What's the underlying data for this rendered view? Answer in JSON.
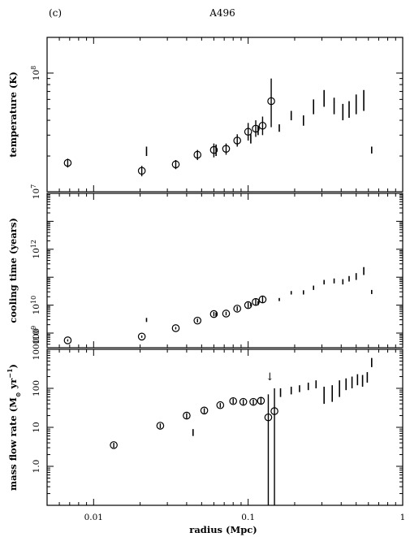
{
  "figure": {
    "panel_label": "(c)",
    "title": "A496",
    "xlabel": "radius (Mpc)",
    "x_scale": "log",
    "xlim": [
      0.005,
      1
    ],
    "x_ticks": [
      {
        "v": 0.01,
        "t": "0.01"
      },
      {
        "v": 0.1,
        "t": "0.1"
      },
      {
        "v": 1,
        "t": "1"
      }
    ]
  },
  "chart_data": [
    {
      "type": "scatter",
      "panel": "top",
      "ylabel": "temperature (K)",
      "y_scale": "log",
      "ylim": [
        10000000,
        200000000
      ],
      "y_ticks": [
        {
          "v": 10000000,
          "t": "10",
          "sup": "7"
        },
        {
          "v": 100000000,
          "t": "10",
          "sup": "8"
        }
      ],
      "circles": [
        {
          "x": 0.0068,
          "y": 17500000,
          "lo": 16000000,
          "hi": 19000000
        },
        {
          "x": 0.0205,
          "y": 15000000,
          "lo": 13500000,
          "hi": 16500000
        },
        {
          "x": 0.034,
          "y": 17000000,
          "lo": 15500000,
          "hi": 18500000
        },
        {
          "x": 0.047,
          "y": 20500000,
          "lo": 18500000,
          "hi": 22500000
        },
        {
          "x": 0.06,
          "y": 22500000,
          "lo": 19500000,
          "hi": 25500000
        },
        {
          "x": 0.072,
          "y": 23000000,
          "lo": 20500000,
          "hi": 25500000
        },
        {
          "x": 0.085,
          "y": 27000000,
          "lo": 24000000,
          "hi": 30500000
        },
        {
          "x": 0.1,
          "y": 32000000,
          "lo": 27000000,
          "hi": 38000000
        },
        {
          "x": 0.112,
          "y": 34000000,
          "lo": 29000000,
          "hi": 40000000
        },
        {
          "x": 0.124,
          "y": 36000000,
          "lo": 30000000,
          "hi": 43000000
        },
        {
          "x": 0.141,
          "y": 58000000,
          "lo": 35000000,
          "hi": 90000000
        }
      ],
      "bars": [
        {
          "x": 0.022,
          "lo": 20000000,
          "hi": 24000000
        },
        {
          "x": 0.062,
          "lo": 20000000,
          "hi": 25000000
        },
        {
          "x": 0.104,
          "lo": 25500000,
          "hi": 30500000
        },
        {
          "x": 0.116,
          "lo": 30000000,
          "hi": 36000000
        },
        {
          "x": 0.159,
          "lo": 32000000,
          "hi": 37000000
        },
        {
          "x": 0.19,
          "lo": 40000000,
          "hi": 48000000
        },
        {
          "x": 0.228,
          "lo": 36000000,
          "hi": 44000000
        },
        {
          "x": 0.265,
          "lo": 45000000,
          "hi": 60000000
        },
        {
          "x": 0.31,
          "lo": 52000000,
          "hi": 72000000
        },
        {
          "x": 0.36,
          "lo": 45000000,
          "hi": 62000000
        },
        {
          "x": 0.41,
          "lo": 40000000,
          "hi": 55000000
        },
        {
          "x": 0.45,
          "lo": 42000000,
          "hi": 58000000
        },
        {
          "x": 0.5,
          "lo": 45000000,
          "hi": 66000000
        },
        {
          "x": 0.56,
          "lo": 48000000,
          "hi": 72000000
        },
        {
          "x": 0.63,
          "lo": 21000000,
          "hi": 24000000
        }
      ]
    },
    {
      "type": "scatter",
      "panel": "middle",
      "ylabel": "cooling time (years)",
      "y_scale": "log",
      "ylim": [
        300000000,
        100000000000000
      ],
      "y_ticks": [
        {
          "v": 1000000000,
          "t": "10",
          "sup": "9"
        },
        {
          "v": 10000000000,
          "t": "10",
          "sup": "10"
        },
        {
          "v": 1000000000000,
          "t": "10",
          "sup": "12"
        }
      ],
      "y_extra_label": "100",
      "circles": [
        {
          "x": 0.0068,
          "y": 550000000,
          "lo": 500000000,
          "hi": 600000000
        },
        {
          "x": 0.0205,
          "y": 750000000,
          "lo": 680000000,
          "hi": 820000000
        },
        {
          "x": 0.034,
          "y": 1500000000,
          "lo": 1350000000,
          "hi": 1650000000
        },
        {
          "x": 0.047,
          "y": 2800000000,
          "lo": 2400000000,
          "hi": 3300000000
        },
        {
          "x": 0.06,
          "y": 4800000000,
          "lo": 4000000000,
          "hi": 5700000000
        },
        {
          "x": 0.072,
          "y": 5000000000,
          "lo": 4300000000,
          "hi": 5800000000
        },
        {
          "x": 0.085,
          "y": 7500000000,
          "lo": 6200000000,
          "hi": 9000000000
        },
        {
          "x": 0.1,
          "y": 10000000000,
          "lo": 8000000000,
          "hi": 12500000000
        },
        {
          "x": 0.112,
          "y": 13000000000,
          "lo": 10000000000,
          "hi": 17000000000
        },
        {
          "x": 0.124,
          "y": 16000000000,
          "lo": 12000000000,
          "hi": 21000000000
        }
      ],
      "bars": [
        {
          "x": 0.022,
          "lo": 2500000000,
          "hi": 3500000000
        },
        {
          "x": 0.062,
          "lo": 4000000000,
          "hi": 5500000000
        },
        {
          "x": 0.104,
          "lo": 9000000000,
          "hi": 12000000000
        },
        {
          "x": 0.116,
          "lo": 10000000000,
          "hi": 14000000000
        },
        {
          "x": 0.159,
          "lo": 14000000000,
          "hi": 18000000000
        },
        {
          "x": 0.19,
          "lo": 24000000000,
          "hi": 32000000000
        },
        {
          "x": 0.228,
          "lo": 24000000000,
          "hi": 34000000000
        },
        {
          "x": 0.265,
          "lo": 35000000000,
          "hi": 50000000000
        },
        {
          "x": 0.31,
          "lo": 55000000000,
          "hi": 80000000000
        },
        {
          "x": 0.36,
          "lo": 60000000000,
          "hi": 90000000000
        },
        {
          "x": 0.41,
          "lo": 55000000000,
          "hi": 85000000000
        },
        {
          "x": 0.45,
          "lo": 70000000000,
          "hi": 110000000000
        },
        {
          "x": 0.5,
          "lo": 80000000000,
          "hi": 140000000000
        },
        {
          "x": 0.56,
          "lo": 120000000000,
          "hi": 230000000000
        },
        {
          "x": 0.63,
          "lo": 25000000000,
          "hi": 35000000000
        }
      ]
    },
    {
      "type": "scatter",
      "panel": "bottom",
      "ylabel": "mass flow rate (M",
      "ylabel_sub": "⊙",
      "ylabel_rest": " yr",
      "ylabel_sup": "−1",
      "ylabel_end": ")",
      "y_scale": "log",
      "ylim": [
        0.1,
        1000
      ],
      "y_ticks": [
        {
          "v": 1,
          "t": "1.0"
        },
        {
          "v": 10,
          "t": "10"
        },
        {
          "v": 100,
          "t": "100"
        },
        {
          "v": 1000,
          "t": "1000"
        }
      ],
      "annotation": "↓",
      "circles": [
        {
          "x": 0.0135,
          "y": 3.5,
          "lo": 3.0,
          "hi": 4.0
        },
        {
          "x": 0.027,
          "y": 11.0,
          "lo": 9.5,
          "hi": 12.5
        },
        {
          "x": 0.04,
          "y": 20.0,
          "lo": 17.0,
          "hi": 23.0
        },
        {
          "x": 0.052,
          "y": 27.0,
          "lo": 23.0,
          "hi": 31.0
        },
        {
          "x": 0.066,
          "y": 37.0,
          "lo": 32.0,
          "hi": 42.0
        },
        {
          "x": 0.08,
          "y": 47.0,
          "lo": 40.0,
          "hi": 55.0
        },
        {
          "x": 0.093,
          "y": 45.0,
          "lo": 38.0,
          "hi": 52.0
        },
        {
          "x": 0.108,
          "y": 45.0,
          "lo": 38.0,
          "hi": 52.0
        },
        {
          "x": 0.121,
          "y": 48.0,
          "lo": 38.0,
          "hi": 60.0
        },
        {
          "x": 0.135,
          "y": 18.0,
          "lo": 0.1,
          "hi": 70.0
        },
        {
          "x": 0.148,
          "y": 26.0,
          "lo": 0.1,
          "hi": 100.0
        }
      ],
      "bars": [
        {
          "x": 0.044,
          "lo": 6.0,
          "hi": 9.0
        },
        {
          "x": 0.162,
          "lo": 60.0,
          "hi": 100.0
        },
        {
          "x": 0.19,
          "lo": 70.0,
          "hi": 110.0
        },
        {
          "x": 0.215,
          "lo": 80.0,
          "hi": 120.0
        },
        {
          "x": 0.245,
          "lo": 90.0,
          "hi": 140.0
        },
        {
          "x": 0.275,
          "lo": 100.0,
          "hi": 160.0
        },
        {
          "x": 0.31,
          "lo": 40.0,
          "hi": 110.0
        },
        {
          "x": 0.35,
          "lo": 45.0,
          "hi": 120.0
        },
        {
          "x": 0.39,
          "lo": 60.0,
          "hi": 160.0
        },
        {
          "x": 0.43,
          "lo": 90.0,
          "hi": 180.0
        },
        {
          "x": 0.47,
          "lo": 100.0,
          "hi": 200.0
        },
        {
          "x": 0.51,
          "lo": 120.0,
          "hi": 230.0
        },
        {
          "x": 0.55,
          "lo": 110.0,
          "hi": 220.0
        },
        {
          "x": 0.59,
          "lo": 140.0,
          "hi": 260.0
        },
        {
          "x": 0.63,
          "lo": 350.0,
          "hi": 600.0
        }
      ]
    }
  ]
}
